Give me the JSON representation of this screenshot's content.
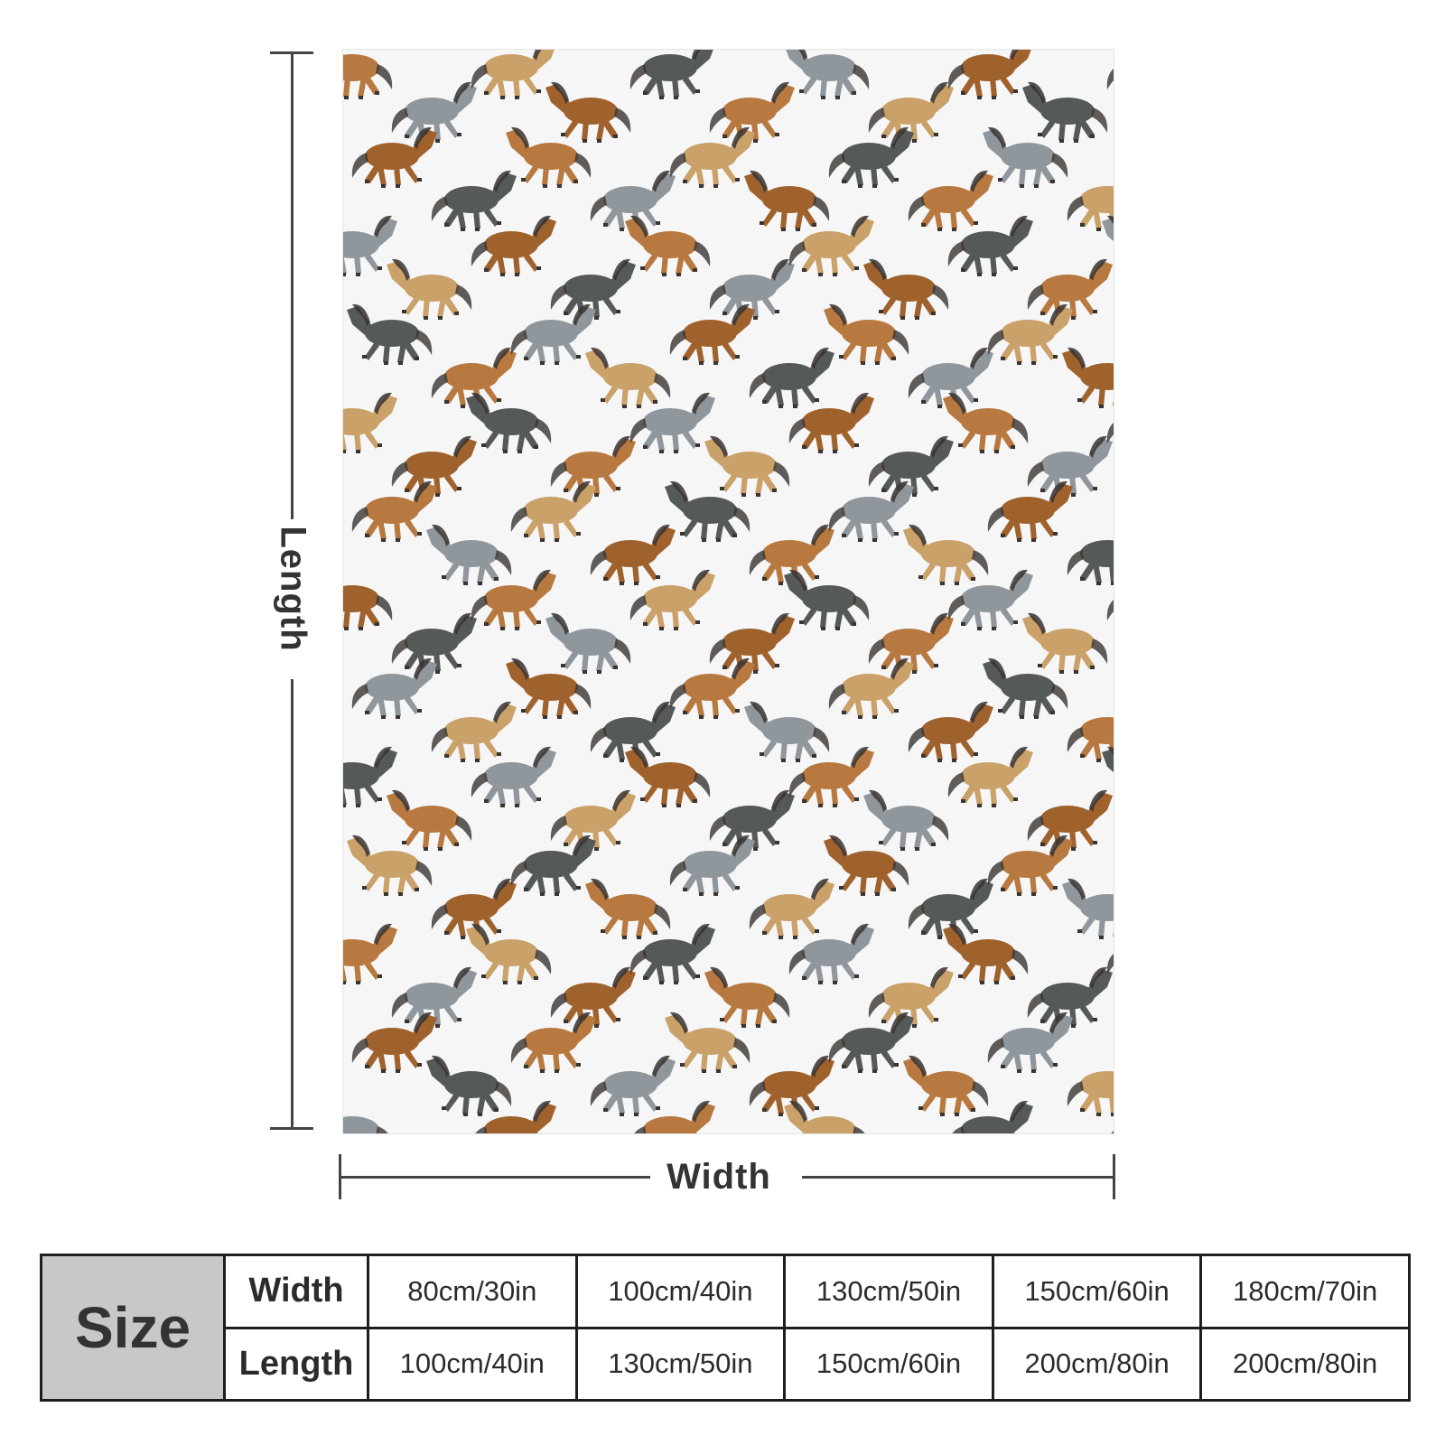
{
  "diagram": {
    "length_label": "Length",
    "width_label": "Width"
  },
  "pattern": {
    "description_icon": "horse-icon",
    "colors": [
      "#b7793f",
      "#8f969c",
      "#c9a169",
      "#a0622d",
      "#555a58"
    ]
  },
  "size_table": {
    "header": "Size",
    "rows": [
      {
        "label": "Width",
        "values": [
          "80cm/30in",
          "100cm/40in",
          "130cm/50in",
          "150cm/60in",
          "180cm/70in"
        ]
      },
      {
        "label": "Length",
        "values": [
          "100cm/40in",
          "130cm/50in",
          "150cm/60in",
          "200cm/80in",
          "200cm/80in"
        ]
      }
    ]
  }
}
